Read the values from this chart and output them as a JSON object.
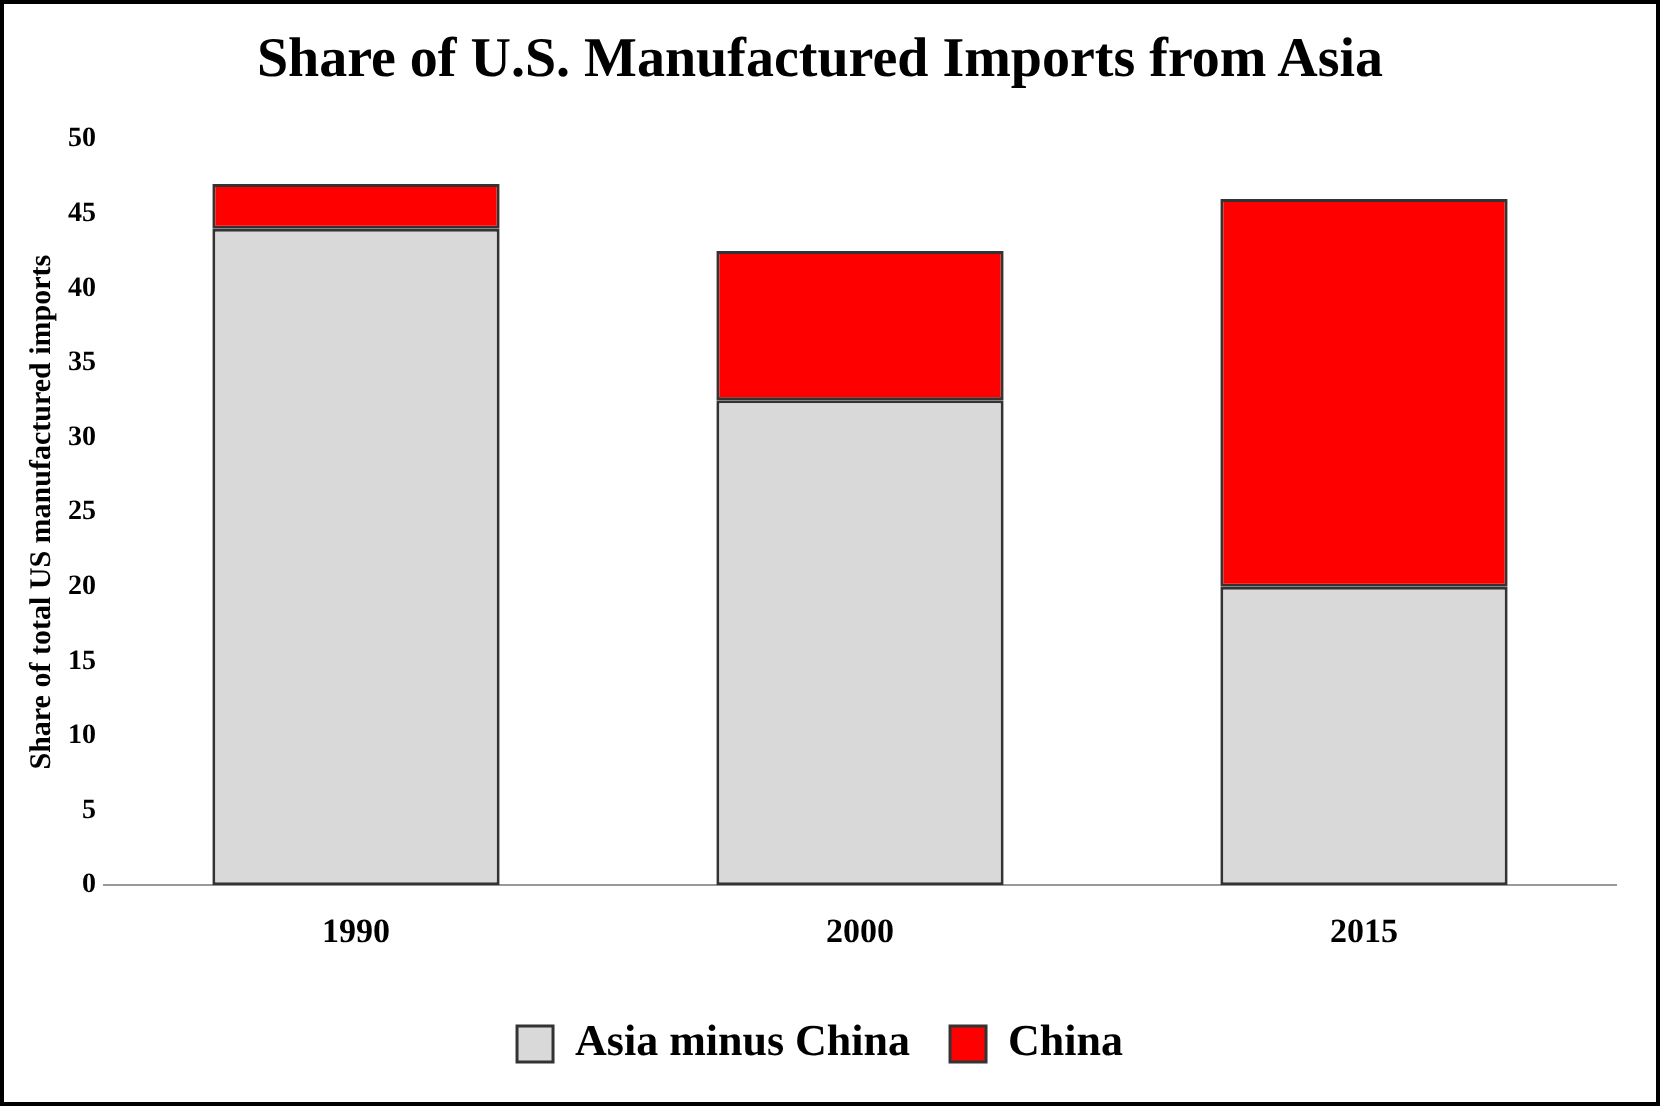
{
  "chart_data": {
    "type": "bar",
    "title": "Share of U.S. Manufactured Imports from Asia",
    "ylabel": "Share of total US manufactured imports",
    "categories": [
      "1990",
      "2000",
      "2015"
    ],
    "series": [
      {
        "name": "Asia minus China",
        "color": "#d9d9d9",
        "values": [
          44,
          32.5,
          20
        ]
      },
      {
        "name": "China",
        "color": "#ff0000",
        "values": [
          3,
          10,
          26
        ]
      }
    ],
    "stacked": true,
    "ylim": [
      0,
      50
    ],
    "yticks": [
      0,
      5,
      10,
      15,
      20,
      25,
      30,
      35,
      40,
      45,
      50
    ],
    "grid": false,
    "legend": "bottom"
  }
}
